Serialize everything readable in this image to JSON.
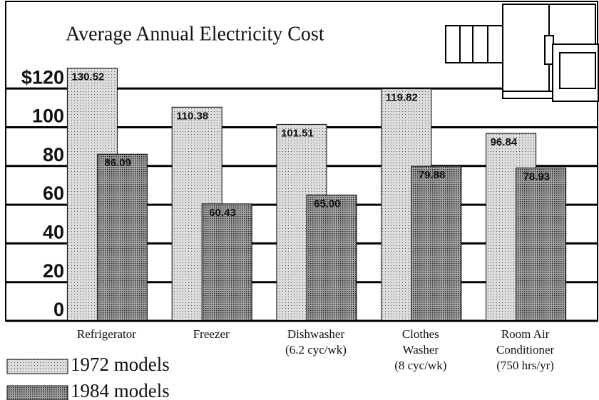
{
  "chart_data": {
    "type": "bar",
    "title": "Average Annual Electricity Cost",
    "categories": [
      [
        "Refrigerator"
      ],
      [
        "Freezer"
      ],
      [
        "Dishwasher",
        "(6.2 cyc/wk)"
      ],
      [
        "Clothes",
        "Washer",
        "(8 cyc/wk)"
      ],
      [
        "Room Air",
        "Conditioner",
        "(750 hrs/yr)"
      ]
    ],
    "series": [
      {
        "name": "1972 models",
        "color": "#dcdcdc",
        "values": [
          130.52,
          110.38,
          101.51,
          119.82,
          96.84
        ],
        "value_labels": [
          "130.52",
          "110.38",
          "101.51",
          "119.82",
          "96.84"
        ]
      },
      {
        "name": "1984 models",
        "color": "#a4a4a4",
        "values": [
          86.09,
          60.43,
          65.0,
          79.88,
          78.93
        ],
        "value_labels": [
          "86.09",
          "60.43",
          "65.00",
          "79.88",
          "78.93"
        ]
      }
    ],
    "ylim": [
      0,
      165
    ],
    "yticks": [
      0,
      20,
      40,
      60,
      80,
      100,
      {
        "value": 120,
        "label": "$120"
      }
    ],
    "grid": true
  }
}
